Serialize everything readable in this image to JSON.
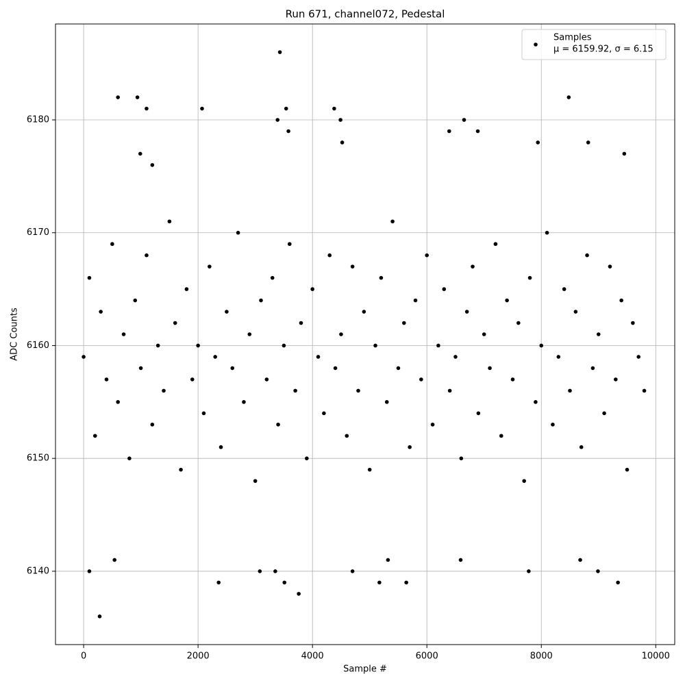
{
  "chart_data": {
    "type": "scatter",
    "title": "Run 671, channel072, Pedestal",
    "x_label": "Sample #",
    "y_label": "ADC Counts",
    "xlim": [
      -492,
      10332
    ],
    "ylim": [
      6133.5,
      6188.5
    ],
    "xticks": [
      0,
      2000,
      4000,
      6000,
      8000,
      10000
    ],
    "yticks": [
      6140,
      6150,
      6160,
      6170,
      6180
    ],
    "grid": true,
    "legend": "upper right",
    "legend_note": "μ = 6159.92, σ = 6.15",
    "series": [
      {
        "name": "Samples",
        "color": "#000000",
        "x": [
          0,
          100,
          200,
          300,
          400,
          500,
          600,
          700,
          800,
          900,
          1000,
          1100,
          1200,
          1300,
          1400,
          1500,
          1600,
          1700,
          1800,
          1900,
          2000,
          2100,
          2200,
          2300,
          2400,
          2500,
          2600,
          2700,
          2800,
          2900,
          3000,
          3100,
          3200,
          3300,
          3400,
          3500,
          3600,
          3700,
          3800,
          3900,
          4000,
          4100,
          4200,
          4300,
          4400,
          4500,
          4600,
          4700,
          4800,
          4900,
          5000,
          5100,
          5200,
          5300,
          5400,
          5500,
          5600,
          5700,
          5800,
          5900,
          6000,
          6100,
          6200,
          6300,
          6400,
          6500,
          6600,
          6700,
          6800,
          6900,
          7000,
          7100,
          7200,
          7300,
          7400,
          7500,
          7600,
          7700,
          7800,
          7900,
          8000,
          8100,
          8200,
          8300,
          8400,
          8500,
          8600,
          8700,
          8800,
          8900,
          9000,
          9100,
          9200,
          9300,
          9400,
          9500,
          9600,
          9700,
          9800,
          280,
          600,
          940,
          1100,
          2070,
          3430,
          3540,
          4380,
          4490,
          3390,
          6650,
          8480,
          100,
          3760,
          2360,
          3510,
          5170,
          5640,
          9340,
          8990,
          3080,
          3350,
          4700,
          7780,
          540,
          5320,
          6590,
          8680,
          990,
          4520,
          7940,
          8820,
          1200,
          9450,
          6390,
          3580,
          6890
        ],
        "values": [
          6159,
          6166,
          6152,
          6163,
          6157,
          6169,
          6155,
          6161,
          6150,
          6164,
          6158,
          6168,
          6153,
          6160,
          6156,
          6171,
          6162,
          6149,
          6165,
          6157,
          6160,
          6154,
          6167,
          6159,
          6151,
          6163,
          6158,
          6170,
          6155,
          6161,
          6148,
          6164,
          6157,
          6166,
          6153,
          6160,
          6169,
          6156,
          6162,
          6150,
          6165,
          6159,
          6154,
          6168,
          6158,
          6161,
          6152,
          6167,
          6156,
          6163,
          6149,
          6160,
          6166,
          6155,
          6171,
          6158,
          6162,
          6151,
          6164,
          6157,
          6168,
          6153,
          6160,
          6165,
          6156,
          6159,
          6150,
          6163,
          6167,
          6154,
          6161,
          6158,
          6169,
          6152,
          6164,
          6157,
          6162,
          6148,
          6166,
          6155,
          6160,
          6170,
          6153,
          6159,
          6165,
          6156,
          6163,
          6151,
          6168,
          6158,
          6161,
          6154,
          6167,
          6157,
          6164,
          6149,
          6162,
          6159,
          6156,
          6136,
          6182,
          6182,
          6181,
          6181,
          6186,
          6181,
          6181,
          6180,
          6180,
          6180,
          6182,
          6140,
          6138,
          6139,
          6139,
          6139,
          6139,
          6139,
          6140,
          6140,
          6140,
          6140,
          6140,
          6141,
          6141,
          6141,
          6141,
          6177,
          6178,
          6178,
          6178,
          6176,
          6177,
          6179,
          6179,
          6179
        ]
      }
    ]
  }
}
